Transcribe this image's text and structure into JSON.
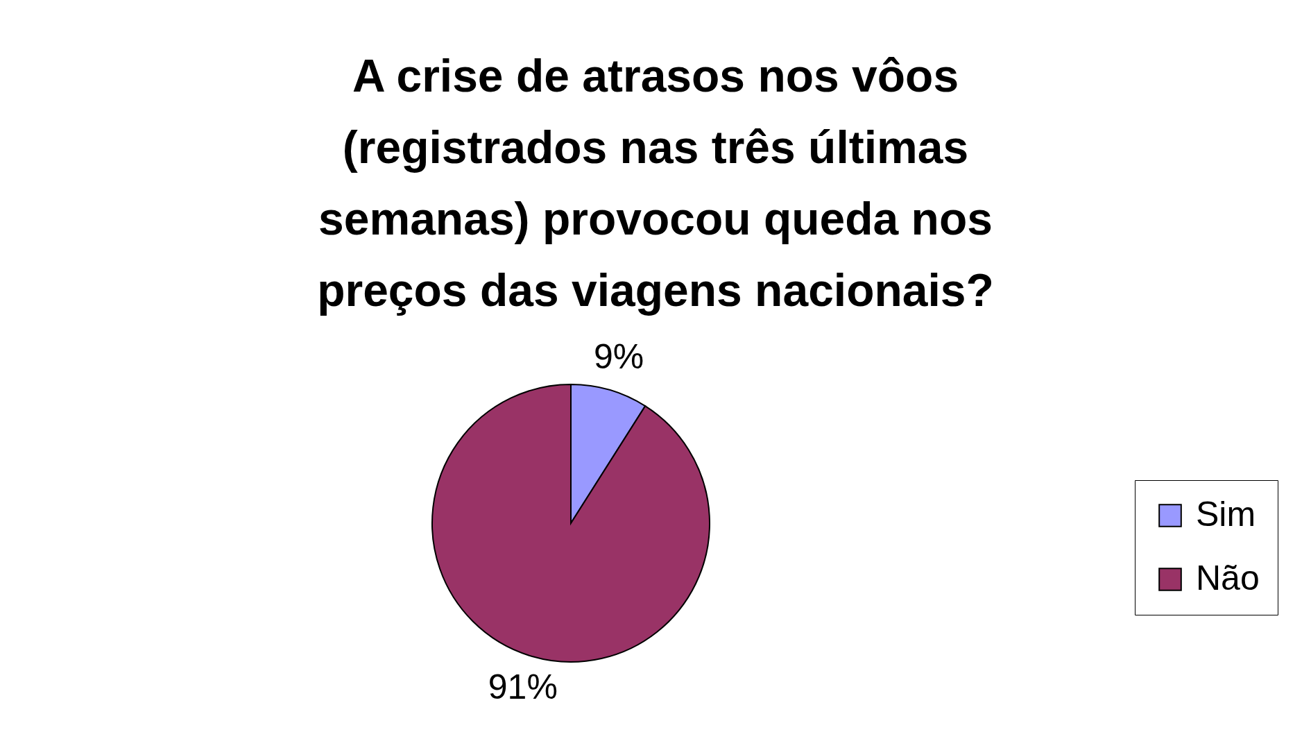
{
  "chart_data": {
    "type": "pie",
    "title": "A crise de atrasos nos vôos (registrados nas três últimas semanas) provocou queda nos preços das viagens nacionais?",
    "categories": [
      "Sim",
      "Não"
    ],
    "values": [
      9,
      91
    ],
    "colors": [
      "#9999ff",
      "#993366"
    ],
    "value_labels": [
      "9%",
      "91%"
    ],
    "legend": "right"
  }
}
